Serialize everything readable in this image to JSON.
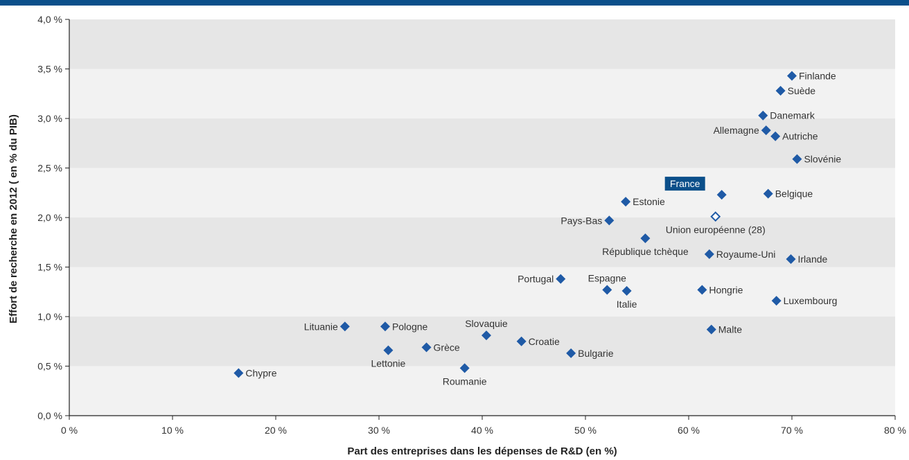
{
  "colors": {
    "top_bar": "#0b4f8a",
    "marker": "#1f5aa6",
    "band_dark": "#e6e6e6",
    "band_light": "#f2f2f2",
    "highlight_bg": "#0b4f8a"
  },
  "chart_data": {
    "type": "scatter",
    "title": "",
    "xlabel": "Part des entreprises dans les dépenses de R&D (en %)",
    "ylabel": "Effort de recherche en 2012 ( en % du PIB)",
    "xlim": [
      0,
      80
    ],
    "ylim": [
      0,
      4
    ],
    "x_ticks": [
      {
        "v": 0,
        "label": "0 %"
      },
      {
        "v": 10,
        "label": "10 %"
      },
      {
        "v": 20,
        "label": "20 %"
      },
      {
        "v": 30,
        "label": "30 %"
      },
      {
        "v": 40,
        "label": "40 %"
      },
      {
        "v": 50,
        "label": "50 %"
      },
      {
        "v": 60,
        "label": "60 %"
      },
      {
        "v": 70,
        "label": "70 %"
      },
      {
        "v": 80,
        "label": "80 %"
      }
    ],
    "y_ticks": [
      {
        "v": 0,
        "label": "0,0 %"
      },
      {
        "v": 0.5,
        "label": "0,5 %"
      },
      {
        "v": 1,
        "label": "1,0 %"
      },
      {
        "v": 1.5,
        "label": "1,5 %"
      },
      {
        "v": 2,
        "label": "2,0 %"
      },
      {
        "v": 2.5,
        "label": "2,5 %"
      },
      {
        "v": 3,
        "label": "3,0 %"
      },
      {
        "v": 3.5,
        "label": "3,5 %"
      },
      {
        "v": 4,
        "label": "4,0 %"
      }
    ],
    "grid": "horizontal alternating bands",
    "points": [
      {
        "name": "Finlande",
        "x": 70.0,
        "y": 3.43,
        "label_side": "right"
      },
      {
        "name": "Suède",
        "x": 68.9,
        "y": 3.28,
        "label_side": "right"
      },
      {
        "name": "Danemark",
        "x": 67.2,
        "y": 3.03,
        "label_side": "right"
      },
      {
        "name": "Allemagne",
        "x": 67.5,
        "y": 2.88,
        "label_side": "left"
      },
      {
        "name": "Autriche",
        "x": 68.4,
        "y": 2.82,
        "label_side": "right"
      },
      {
        "name": "Slovénie",
        "x": 70.5,
        "y": 2.59,
        "label_side": "right"
      },
      {
        "name": "France",
        "x": 63.2,
        "y": 2.23,
        "label_side": "highlight"
      },
      {
        "name": "Belgique",
        "x": 67.7,
        "y": 2.24,
        "label_side": "right"
      },
      {
        "name": "Estonie",
        "x": 53.9,
        "y": 2.16,
        "label_side": "right"
      },
      {
        "name": "Pays-Bas",
        "x": 52.3,
        "y": 1.97,
        "label_side": "left"
      },
      {
        "name": "Union européenne (28)",
        "x": 62.6,
        "y": 2.01,
        "label_side": "below",
        "hollow": true
      },
      {
        "name": "République tchèque",
        "x": 55.8,
        "y": 1.79,
        "label_side": "below"
      },
      {
        "name": "Royaume-Uni",
        "x": 62.0,
        "y": 1.63,
        "label_side": "right"
      },
      {
        "name": "Irlande",
        "x": 69.9,
        "y": 1.58,
        "label_side": "right"
      },
      {
        "name": "Portugal",
        "x": 47.6,
        "y": 1.38,
        "label_side": "left"
      },
      {
        "name": "Espagne",
        "x": 52.1,
        "y": 1.27,
        "label_side": "above"
      },
      {
        "name": "Italie",
        "x": 54.0,
        "y": 1.26,
        "label_side": "below"
      },
      {
        "name": "Hongrie",
        "x": 61.3,
        "y": 1.27,
        "label_side": "right"
      },
      {
        "name": "Luxembourg",
        "x": 68.5,
        "y": 1.16,
        "label_side": "right"
      },
      {
        "name": "Lituanie",
        "x": 26.7,
        "y": 0.9,
        "label_side": "left"
      },
      {
        "name": "Pologne",
        "x": 30.6,
        "y": 0.9,
        "label_side": "right"
      },
      {
        "name": "Slovaquie",
        "x": 40.4,
        "y": 0.81,
        "label_side": "above"
      },
      {
        "name": "Malte",
        "x": 62.2,
        "y": 0.87,
        "label_side": "right"
      },
      {
        "name": "Croatie",
        "x": 43.8,
        "y": 0.75,
        "label_side": "right"
      },
      {
        "name": "Grèce",
        "x": 34.6,
        "y": 0.69,
        "label_side": "right"
      },
      {
        "name": "Lettonie",
        "x": 30.9,
        "y": 0.66,
        "label_side": "below"
      },
      {
        "name": "Bulgarie",
        "x": 48.6,
        "y": 0.63,
        "label_side": "right"
      },
      {
        "name": "Roumanie",
        "x": 38.3,
        "y": 0.48,
        "label_side": "below"
      },
      {
        "name": "Chypre",
        "x": 16.4,
        "y": 0.43,
        "label_side": "right"
      }
    ]
  }
}
